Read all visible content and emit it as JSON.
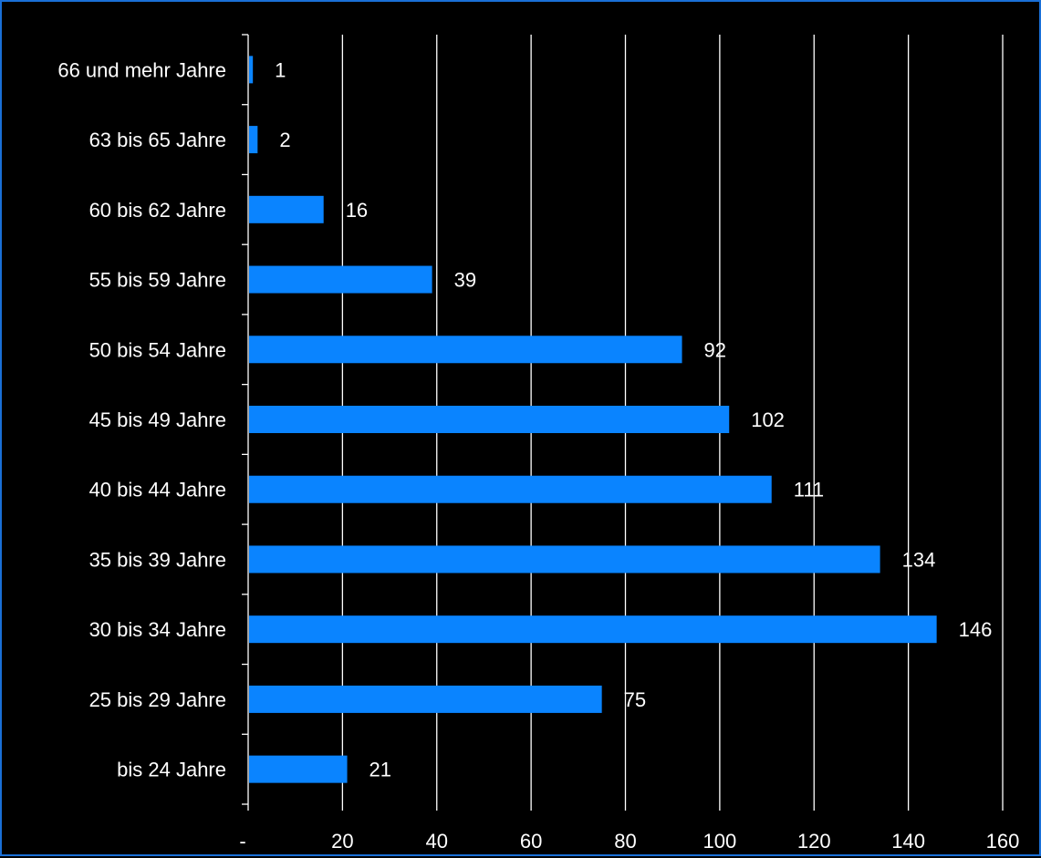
{
  "colors": {
    "background": "#000000",
    "bar": "#0a84ff",
    "frame": "#1a6fd6",
    "grid": "#ffffff",
    "text": "#ffffff"
  },
  "chart_data": {
    "type": "bar",
    "orientation": "horizontal",
    "categories": [
      "bis 24 Jahre",
      "25 bis 29 Jahre",
      "30 bis 34 Jahre",
      "35 bis 39 Jahre",
      "40 bis 44 Jahre",
      "45 bis 49 Jahre",
      "50 bis 54 Jahre",
      "55 bis 59 Jahre",
      "60 bis 62 Jahre",
      "63 bis 65 Jahre",
      "66 und mehr Jahre"
    ],
    "values": [
      21,
      75,
      146,
      134,
      111,
      102,
      92,
      39,
      16,
      2,
      1
    ],
    "data_labels": [
      "21",
      "75",
      "146",
      "134",
      "111",
      "102",
      "92",
      "39",
      "16",
      "2",
      "1"
    ],
    "xlim": [
      0,
      160
    ],
    "x_ticks": [
      0,
      20,
      40,
      60,
      80,
      100,
      120,
      140,
      160
    ],
    "x_tick_labels": [
      "-",
      "20",
      "40",
      "60",
      "80",
      "100",
      "120",
      "140",
      "160"
    ],
    "grid": "vertical",
    "legend": "none"
  }
}
